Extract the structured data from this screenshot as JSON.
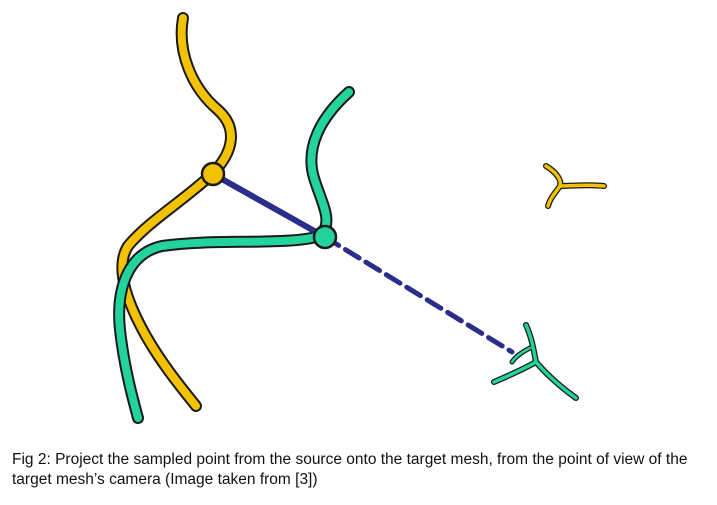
{
  "caption": {
    "text": "Fig 2: Project the sampled point from the source onto the target mesh, from the point of view of the target mesh’s camera (Image taken from [3])"
  },
  "colors": {
    "source": "#f2c200",
    "target": "#22d39c",
    "projection": "#2a2d8c",
    "outline": "#1a1a1a"
  },
  "icons": [
    "source-camera-icon",
    "target-camera-icon"
  ]
}
